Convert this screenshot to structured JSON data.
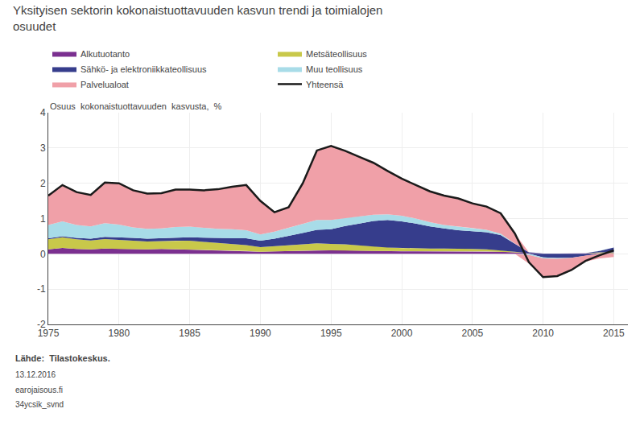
{
  "chart_data": {
    "type": "area",
    "stacked": true,
    "title": "Yksityisen sektorin kokonaistuottavuuden kasvun trendi ja toimialojen\nosuudet",
    "ylabel": "Osuus  kokonaistuottavuuden  kasvusta,  %",
    "annotations": [
      "Lähde:  Tilastokeskus.",
      "13.12.2016",
      "earojaisous.fi",
      "34ycsik_svnd"
    ],
    "x": [
      1975,
      1976,
      1977,
      1978,
      1979,
      1980,
      1981,
      1982,
      1983,
      1984,
      1985,
      1986,
      1987,
      1988,
      1989,
      1990,
      1991,
      1992,
      1993,
      1994,
      1995,
      1996,
      1997,
      1998,
      1999,
      2000,
      2001,
      2002,
      2003,
      2004,
      2005,
      2006,
      2007,
      2008,
      2009,
      2010,
      2011,
      2012,
      2013,
      2014,
      2015
    ],
    "series": [
      {
        "name": "Alkutuotanto",
        "color": "#7B3090",
        "values": [
          0.13,
          0.17,
          0.14,
          0.13,
          0.15,
          0.14,
          0.13,
          0.13,
          0.14,
          0.13,
          0.12,
          0.11,
          0.1,
          0.09,
          0.08,
          0.06,
          0.07,
          0.08,
          0.09,
          0.1,
          0.1,
          0.1,
          0.09,
          0.08,
          0.07,
          0.07,
          0.07,
          0.07,
          0.07,
          0.07,
          0.07,
          0.07,
          0.06,
          0.04,
          0.02,
          0.01,
          0.01,
          0.01,
          0.01,
          0.02,
          0.02
        ]
      },
      {
        "name": "Metsäteollisuus",
        "color": "#C8C84A",
        "values": [
          0.28,
          0.3,
          0.27,
          0.25,
          0.27,
          0.26,
          0.24,
          0.22,
          0.22,
          0.24,
          0.25,
          0.23,
          0.21,
          0.19,
          0.17,
          0.13,
          0.14,
          0.16,
          0.18,
          0.2,
          0.18,
          0.17,
          0.15,
          0.13,
          0.11,
          0.09,
          0.09,
          0.08,
          0.08,
          0.08,
          0.07,
          0.06,
          0.04,
          0.02,
          0.0,
          0.01,
          0.01,
          0.01,
          0.01,
          0.02,
          0.02
        ]
      },
      {
        "name": "Sähkö- ja elektroniikkateollisuus",
        "color": "#363D8C",
        "values": [
          0.03,
          0.03,
          0.04,
          0.05,
          0.06,
          0.07,
          0.08,
          0.08,
          0.08,
          0.09,
          0.1,
          0.12,
          0.14,
          0.16,
          0.19,
          0.18,
          0.22,
          0.27,
          0.32,
          0.38,
          0.42,
          0.52,
          0.62,
          0.72,
          0.78,
          0.76,
          0.7,
          0.63,
          0.57,
          0.52,
          0.5,
          0.48,
          0.43,
          0.22,
          0.02,
          -0.1,
          -0.12,
          -0.11,
          -0.05,
          0.04,
          0.14
        ]
      },
      {
        "name": "Muu teollisuus",
        "color": "#A8DCE8",
        "values": [
          0.38,
          0.42,
          0.37,
          0.35,
          0.39,
          0.36,
          0.3,
          0.28,
          0.28,
          0.3,
          0.3,
          0.28,
          0.26,
          0.26,
          0.23,
          0.18,
          0.2,
          0.23,
          0.26,
          0.28,
          0.26,
          0.23,
          0.2,
          0.18,
          0.16,
          0.16,
          0.14,
          0.12,
          0.1,
          0.1,
          0.09,
          0.07,
          0.04,
          0.01,
          -0.03,
          -0.03,
          -0.02,
          -0.01,
          0.0,
          0.01,
          0.01
        ]
      },
      {
        "name": "Palvelualoat",
        "color": "#F0A0A8",
        "values": [
          0.83,
          1.03,
          0.93,
          0.89,
          1.15,
          1.17,
          1.05,
          1.0,
          1.0,
          1.06,
          1.05,
          1.06,
          1.12,
          1.2,
          1.28,
          0.95,
          0.55,
          0.58,
          1.15,
          1.97,
          2.1,
          1.9,
          1.69,
          1.47,
          1.23,
          1.05,
          0.95,
          0.87,
          0.83,
          0.8,
          0.7,
          0.66,
          0.58,
          0.29,
          -0.25,
          -0.54,
          -0.51,
          -0.36,
          -0.17,
          -0.13,
          -0.09
        ]
      },
      {
        "name": "Yhteensä",
        "color": "#1A1A1A",
        "type": "line",
        "values": [
          1.65,
          1.95,
          1.75,
          1.67,
          2.02,
          2.0,
          1.8,
          1.71,
          1.72,
          1.82,
          1.82,
          1.8,
          1.83,
          1.9,
          1.95,
          1.5,
          1.18,
          1.32,
          2.0,
          2.93,
          3.06,
          2.92,
          2.75,
          2.58,
          2.35,
          2.13,
          1.95,
          1.77,
          1.65,
          1.57,
          1.43,
          1.34,
          1.15,
          0.58,
          -0.24,
          -0.66,
          -0.63,
          -0.46,
          -0.2,
          -0.04,
          0.1
        ]
      }
    ],
    "xlim": [
      1975,
      2016
    ],
    "xticks": [
      1975,
      1980,
      1985,
      1990,
      1995,
      2000,
      2005,
      2010,
      2015
    ],
    "ylim": [
      -2,
      4
    ],
    "yticks": [
      -2,
      -1,
      0,
      1,
      2,
      3,
      4
    ],
    "grid": true,
    "legend": "top"
  }
}
